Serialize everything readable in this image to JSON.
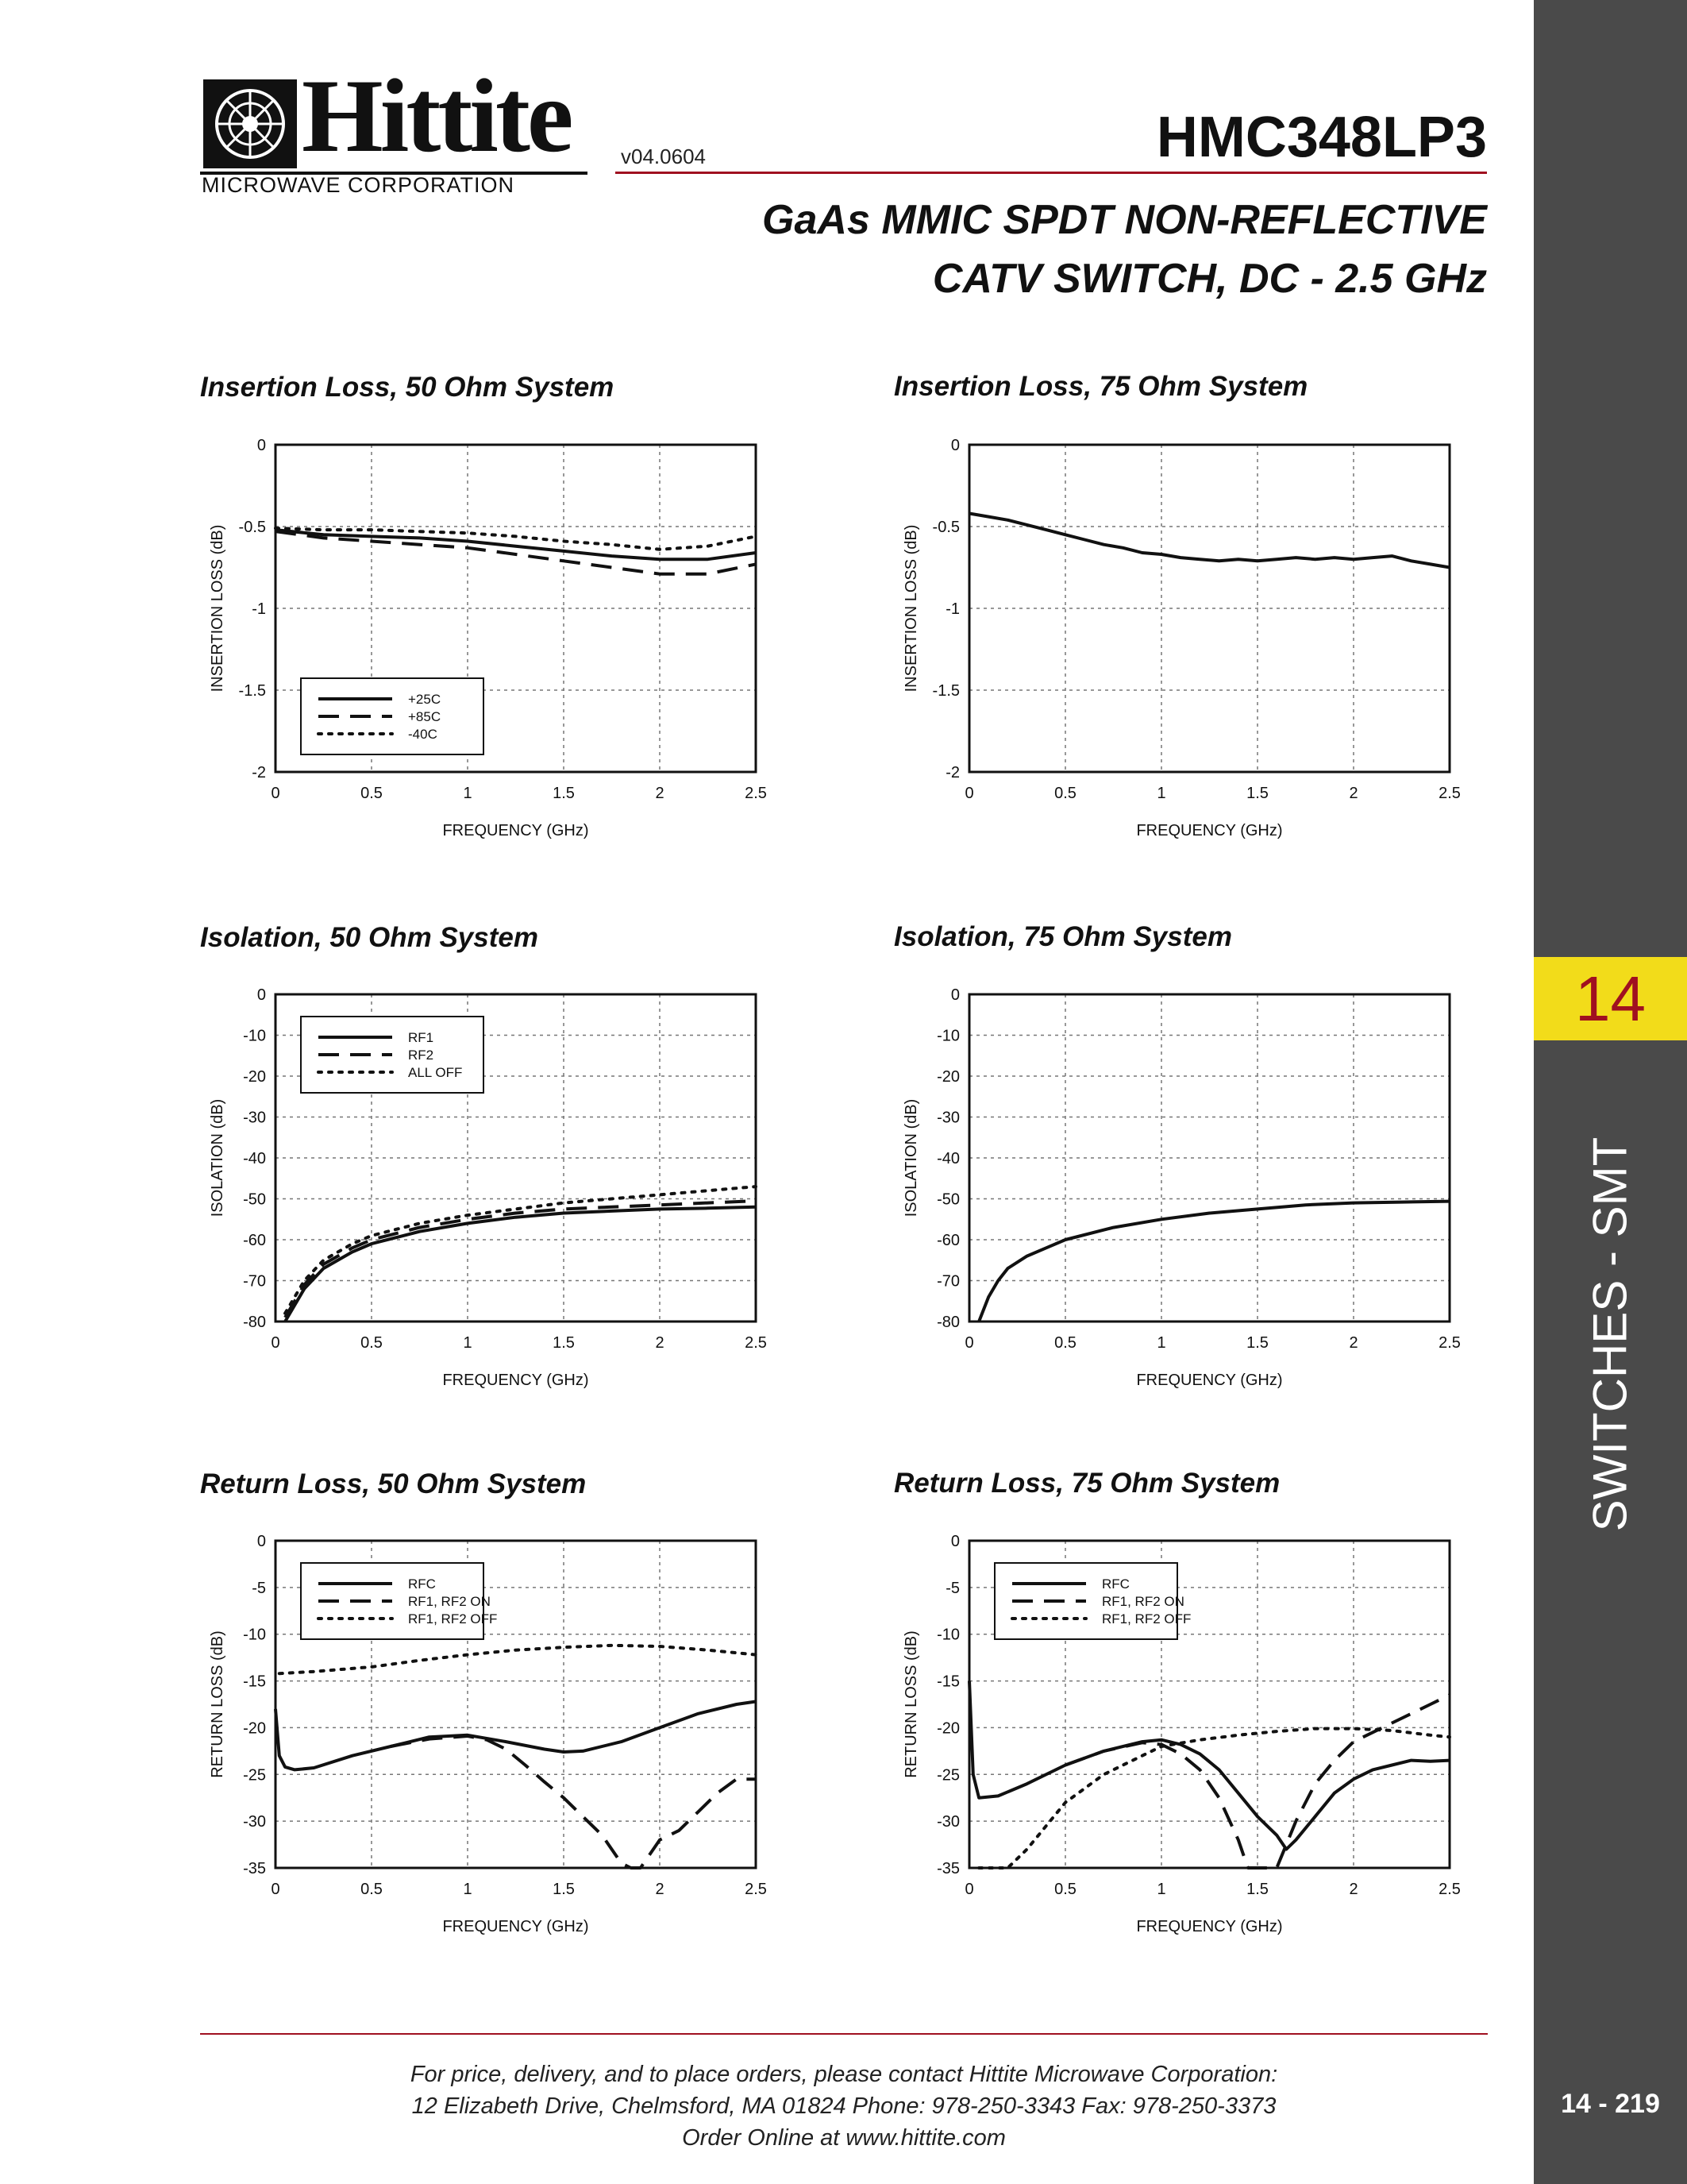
{
  "header": {
    "company": "Hittite",
    "company_sub": "MICROWAVE CORPORATION",
    "version": "v04.0604",
    "part_number": "HMC348LP3",
    "title_line1": "GaAs MMIC SPDT NON-REFLECTIVE",
    "title_line2": "CATV SWITCH, DC - 2.5 GHz"
  },
  "side_tab": {
    "section_number": "14",
    "section_name": "SWITCHES - SMT",
    "page_number": "14 - 219"
  },
  "footer": {
    "line1": "For price, delivery, and to place orders, please contact Hittite Microwave Corporation:",
    "line2": "12 Elizabeth Drive, Chelmsford, MA 01824 Phone: 978-250-3343  Fax: 978-250-3373",
    "line3": "Order Online at www.hittite.com"
  },
  "chart_data": [
    {
      "type": "line",
      "title": "Insertion Loss, 50 Ohm System",
      "xlabel": "FREQUENCY (GHz)",
      "ylabel": "INSERTION LOSS  (dB)",
      "xlim": [
        0,
        2.5
      ],
      "ylim": [
        -2,
        0
      ],
      "xticks": [
        0,
        0.5,
        1,
        1.5,
        2,
        2.5
      ],
      "xtick_labels": [
        "0",
        "0.5",
        "1",
        "1.5",
        "2",
        "2.5"
      ],
      "yticks": [
        0,
        -0.5,
        -1,
        -1.5,
        -2
      ],
      "ytick_labels": [
        "0",
        "-0.5",
        "-1",
        "-1.5",
        "-2"
      ],
      "grid": true,
      "legend": {
        "position": "bottom-left"
      },
      "series": [
        {
          "name": "+25C",
          "style": "solid",
          "x": [
            0,
            0.25,
            0.5,
            0.75,
            1.0,
            1.25,
            1.5,
            1.75,
            2.0,
            2.25,
            2.5
          ],
          "y": [
            -0.52,
            -0.55,
            -0.56,
            -0.57,
            -0.59,
            -0.62,
            -0.65,
            -0.68,
            -0.7,
            -0.7,
            -0.66
          ]
        },
        {
          "name": "+85C",
          "style": "dashed",
          "x": [
            0,
            0.25,
            0.5,
            0.75,
            1.0,
            1.25,
            1.5,
            1.75,
            2.0,
            2.25,
            2.5
          ],
          "y": [
            -0.53,
            -0.57,
            -0.59,
            -0.61,
            -0.63,
            -0.67,
            -0.71,
            -0.75,
            -0.79,
            -0.79,
            -0.73
          ]
        },
        {
          "name": "-40C",
          "style": "dotted",
          "x": [
            0,
            0.25,
            0.5,
            0.75,
            1.0,
            1.25,
            1.5,
            1.75,
            2.0,
            2.25,
            2.5
          ],
          "y": [
            -0.51,
            -0.52,
            -0.52,
            -0.53,
            -0.54,
            -0.56,
            -0.59,
            -0.61,
            -0.64,
            -0.62,
            -0.56
          ]
        }
      ]
    },
    {
      "type": "line",
      "title": "Insertion Loss, 75 Ohm System",
      "xlabel": "FREQUENCY (GHz)",
      "ylabel": "INSERTION LOSS  (dB)",
      "xlim": [
        0,
        2.5
      ],
      "ylim": [
        -2,
        0
      ],
      "xticks": [
        0,
        0.5,
        1,
        1.5,
        2,
        2.5
      ],
      "xtick_labels": [
        "0",
        "0.5",
        "1",
        "1.5",
        "2",
        "2.5"
      ],
      "yticks": [
        0,
        -0.5,
        -1,
        -1.5,
        -2
      ],
      "ytick_labels": [
        "0",
        "-0.5",
        "-1",
        "-1.5",
        "-2"
      ],
      "grid": true,
      "series": [
        {
          "style": "solid",
          "x": [
            0,
            0.1,
            0.2,
            0.3,
            0.4,
            0.5,
            0.6,
            0.7,
            0.8,
            0.9,
            1.0,
            1.1,
            1.2,
            1.3,
            1.4,
            1.5,
            1.6,
            1.7,
            1.8,
            1.9,
            2.0,
            2.1,
            2.2,
            2.3,
            2.4,
            2.5
          ],
          "y": [
            -0.42,
            -0.44,
            -0.46,
            -0.49,
            -0.52,
            -0.55,
            -0.58,
            -0.61,
            -0.63,
            -0.66,
            -0.67,
            -0.69,
            -0.7,
            -0.71,
            -0.7,
            -0.71,
            -0.7,
            -0.69,
            -0.7,
            -0.69,
            -0.7,
            -0.69,
            -0.68,
            -0.71,
            -0.73,
            -0.75
          ]
        }
      ]
    },
    {
      "type": "line",
      "title": "Isolation, 50 Ohm System",
      "xlabel": "FREQUENCY (GHz)",
      "ylabel": "ISOLATION (dB)",
      "xlim": [
        0,
        2.5
      ],
      "ylim": [
        -80,
        0
      ],
      "xticks": [
        0,
        0.5,
        1,
        1.5,
        2,
        2.5
      ],
      "xtick_labels": [
        "0",
        "0.5",
        "1",
        "1.5",
        "2",
        "2.5"
      ],
      "yticks": [
        0,
        -10,
        -20,
        -30,
        -40,
        -50,
        -60,
        -70,
        -80
      ],
      "ytick_labels": [
        "0",
        "-10",
        "-20",
        "-30",
        "-40",
        "-50",
        "-60",
        "-70",
        "-80"
      ],
      "grid": true,
      "legend": {
        "position": "top-left"
      },
      "series": [
        {
          "name": "RF1",
          "style": "solid",
          "x": [
            0.05,
            0.1,
            0.15,
            0.25,
            0.4,
            0.5,
            0.75,
            1.0,
            1.25,
            1.5,
            1.75,
            2.0,
            2.25,
            2.5
          ],
          "y": [
            -80,
            -76,
            -72,
            -67,
            -63,
            -61,
            -58,
            -56,
            -54.5,
            -53.5,
            -53,
            -52.5,
            -52.3,
            -52
          ]
        },
        {
          "name": "RF2",
          "style": "dashed",
          "x": [
            0.05,
            0.1,
            0.15,
            0.25,
            0.4,
            0.5,
            0.75,
            1.0,
            1.25,
            1.5,
            1.75,
            2.0,
            2.25,
            2.5
          ],
          "y": [
            -79,
            -75,
            -71,
            -66,
            -62,
            -60,
            -57,
            -55,
            -53.5,
            -52.5,
            -52,
            -51.5,
            -51,
            -50.5
          ]
        },
        {
          "name": "ALL OFF",
          "style": "dotted",
          "x": [
            0.05,
            0.1,
            0.15,
            0.25,
            0.4,
            0.5,
            0.75,
            1.0,
            1.25,
            1.5,
            1.75,
            2.0,
            2.25,
            2.5
          ],
          "y": [
            -78,
            -74,
            -70,
            -65,
            -61,
            -59,
            -56,
            -54,
            -52.5,
            -51,
            -50,
            -49,
            -48,
            -47
          ]
        }
      ]
    },
    {
      "type": "line",
      "title": "Isolation, 75 Ohm System",
      "xlabel": "FREQUENCY (GHz)",
      "ylabel": "ISOLATION (dB)",
      "xlim": [
        0,
        2.5
      ],
      "ylim": [
        -80,
        0
      ],
      "xticks": [
        0,
        0.5,
        1,
        1.5,
        2,
        2.5
      ],
      "xtick_labels": [
        "0",
        "0.5",
        "1",
        "1.5",
        "2",
        "2.5"
      ],
      "yticks": [
        0,
        -10,
        -20,
        -30,
        -40,
        -50,
        -60,
        -70,
        -80
      ],
      "ytick_labels": [
        "0",
        "-10",
        "-20",
        "-30",
        "-40",
        "-50",
        "-60",
        "-70",
        "-80"
      ],
      "grid": true,
      "series": [
        {
          "style": "solid",
          "x": [
            0.05,
            0.1,
            0.15,
            0.2,
            0.3,
            0.4,
            0.5,
            0.75,
            1.0,
            1.25,
            1.5,
            1.75,
            2.0,
            2.25,
            2.5
          ],
          "y": [
            -80,
            -74,
            -70,
            -67,
            -64,
            -62,
            -60,
            -57,
            -55,
            -53.5,
            -52.5,
            -51.5,
            -51,
            -50.8,
            -50.6
          ]
        }
      ]
    },
    {
      "type": "line",
      "title": "Return Loss, 50 Ohm System",
      "xlabel": "FREQUENCY (GHz)",
      "ylabel": "RETURN LOSS (dB)",
      "xlim": [
        0,
        2.5
      ],
      "ylim": [
        -35,
        0
      ],
      "xticks": [
        0,
        0.5,
        1,
        1.5,
        2,
        2.5
      ],
      "xtick_labels": [
        "0",
        "0.5",
        "1",
        "1.5",
        "2",
        "2.5"
      ],
      "yticks": [
        0,
        -5,
        -10,
        -15,
        -20,
        -25,
        -30,
        -35
      ],
      "ytick_labels": [
        "0",
        "-5",
        "-10",
        "-15",
        "-20",
        "-25",
        "-30",
        "-35"
      ],
      "grid": true,
      "legend": {
        "position": "top-left"
      },
      "series": [
        {
          "name": "RFC",
          "style": "solid",
          "x": [
            0.0,
            0.02,
            0.05,
            0.1,
            0.2,
            0.4,
            0.6,
            0.8,
            1.0,
            1.2,
            1.4,
            1.5,
            1.6,
            1.8,
            2.0,
            2.2,
            2.4,
            2.5
          ],
          "y": [
            -18,
            -23,
            -24.2,
            -24.5,
            -24.3,
            -23,
            -22,
            -21,
            -20.8,
            -21.5,
            -22.3,
            -22.6,
            -22.5,
            -21.5,
            -20,
            -18.5,
            -17.5,
            -17.2
          ]
        },
        {
          "name": "RF1, RF2 ON",
          "style": "dashed",
          "x": [
            0.6,
            0.8,
            1.0,
            1.1,
            1.2,
            1.3,
            1.4,
            1.5,
            1.6,
            1.7,
            1.8,
            1.85,
            1.9,
            2.0,
            2.1,
            2.2,
            2.3,
            2.4,
            2.5
          ],
          "y": [
            -22,
            -21.2,
            -20.9,
            -21.3,
            -22.3,
            -24,
            -25.8,
            -27.5,
            -29.5,
            -31.5,
            -34.5,
            -35,
            -35,
            -32,
            -31,
            -29,
            -27,
            -25.5,
            -25.5
          ]
        },
        {
          "name": "RF1, RF2 OFF",
          "style": "dotted",
          "x": [
            0.02,
            0.2,
            0.5,
            0.75,
            1.0,
            1.25,
            1.5,
            1.75,
            2.0,
            2.25,
            2.5
          ],
          "y": [
            -14.2,
            -14,
            -13.5,
            -12.8,
            -12.2,
            -11.7,
            -11.4,
            -11.2,
            -11.3,
            -11.7,
            -12.2
          ]
        }
      ]
    },
    {
      "type": "line",
      "title": "Return Loss, 75 Ohm System",
      "xlabel": "FREQUENCY (GHz)",
      "ylabel": "RETURN LOSS (dB)",
      "xlim": [
        0,
        2.5
      ],
      "ylim": [
        -35,
        0
      ],
      "xticks": [
        0,
        0.5,
        1,
        1.5,
        2,
        2.5
      ],
      "xtick_labels": [
        "0",
        "0.5",
        "1",
        "1.5",
        "2",
        "2.5"
      ],
      "yticks": [
        0,
        -5,
        -10,
        -15,
        -20,
        -25,
        -30,
        -35
      ],
      "ytick_labels": [
        "0",
        "-5",
        "-10",
        "-15",
        "-20",
        "-25",
        "-30",
        "-35"
      ],
      "grid": true,
      "legend": {
        "position": "top-left"
      },
      "series": [
        {
          "name": "RFC",
          "style": "solid",
          "x": [
            0.0,
            0.02,
            0.05,
            0.15,
            0.3,
            0.5,
            0.7,
            0.9,
            1.0,
            1.1,
            1.2,
            1.3,
            1.4,
            1.5,
            1.6,
            1.65,
            1.7,
            1.8,
            1.9,
            2.0,
            2.1,
            2.2,
            2.3,
            2.4,
            2.5
          ],
          "y": [
            -15,
            -25,
            -27.5,
            -27.3,
            -26,
            -24,
            -22.5,
            -21.5,
            -21.3,
            -21.8,
            -22.8,
            -24.5,
            -27,
            -29.5,
            -31.5,
            -33,
            -32,
            -29.5,
            -27,
            -25.5,
            -24.5,
            -24,
            -23.5,
            -23.6,
            -23.5
          ]
        },
        {
          "name": "RF1, RF2 ON",
          "style": "dashed",
          "x": [
            0.5,
            0.7,
            0.9,
            1.0,
            1.1,
            1.2,
            1.3,
            1.4,
            1.45,
            1.5,
            1.6,
            1.7,
            1.8,
            1.9,
            2.0,
            2.1,
            2.2,
            2.3,
            2.4,
            2.5
          ],
          "y": [
            -24,
            -22.5,
            -21.6,
            -21.8,
            -22.8,
            -24.5,
            -27.5,
            -32,
            -35,
            -35,
            -35,
            -30,
            -26,
            -23.5,
            -21.5,
            -20.5,
            -19.5,
            -18.5,
            -17.5,
            -16.5
          ]
        },
        {
          "name": "RF1, RF2 OFF",
          "style": "dotted",
          "x": [
            0.05,
            0.2,
            0.3,
            0.5,
            0.7,
            0.9,
            1.0,
            1.2,
            1.4,
            1.6,
            1.8,
            2.0,
            2.2,
            2.4,
            2.5
          ],
          "y": [
            -35,
            -35,
            -33,
            -28,
            -25,
            -23,
            -22,
            -21.3,
            -20.8,
            -20.4,
            -20.1,
            -20.1,
            -20.3,
            -20.8,
            -21
          ]
        }
      ]
    }
  ]
}
